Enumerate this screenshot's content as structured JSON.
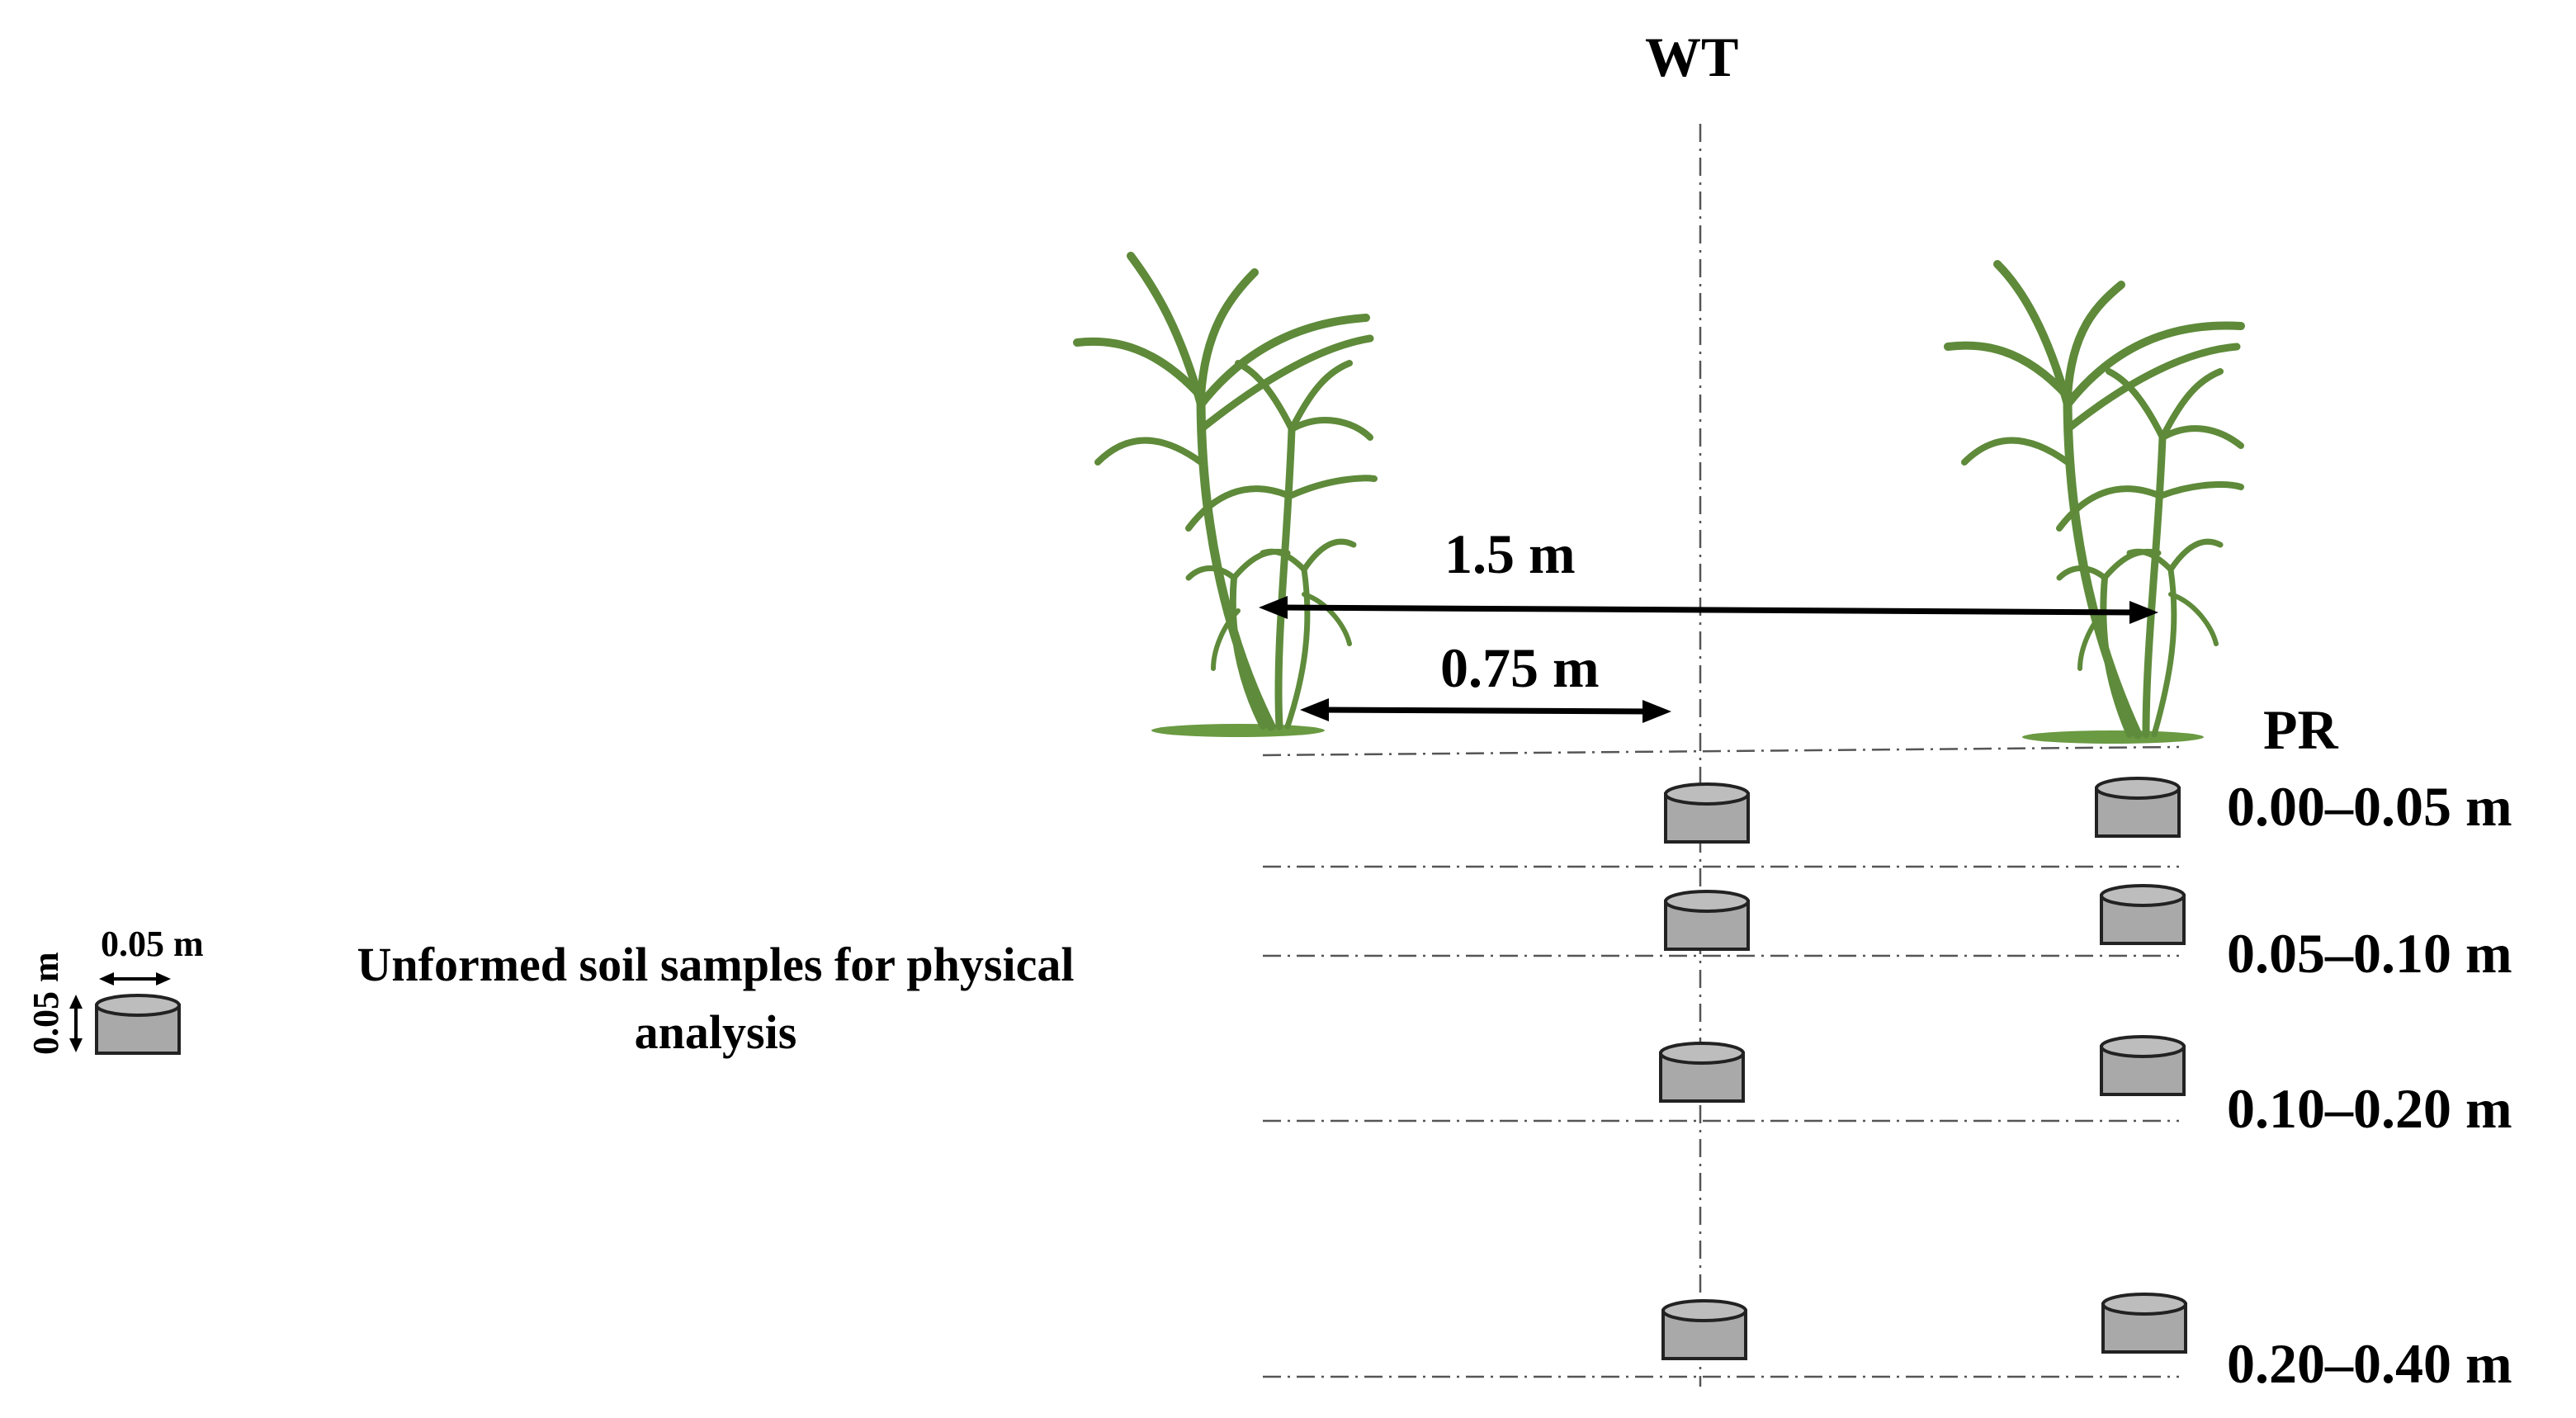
{
  "labels": {
    "wt": "WT",
    "pr": "PR",
    "distance_full": "1.5 m",
    "distance_half": "0.75 m"
  },
  "depths": [
    "0.00–0.05 m",
    "0.05–0.10 m",
    "0.10–0.20 m",
    "0.20–0.40 m"
  ],
  "legend": {
    "width_label": "0.05 m",
    "height_label": "0.05 m",
    "text_line1": "Unformed soil samples  for physical",
    "text_line2": "analysis"
  },
  "colors": {
    "plant": "#5e8a3a",
    "sample": "#a9a9a9"
  }
}
